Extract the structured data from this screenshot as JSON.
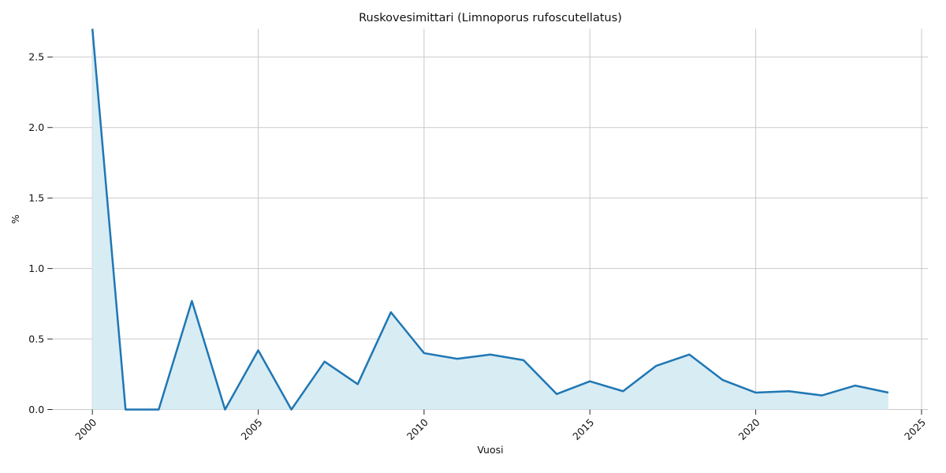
{
  "chart_data": {
    "type": "area",
    "title": "Ruskovesimittari (Limnoporus rufoscutellatus)",
    "xlabel": "Vuosi",
    "ylabel": "%",
    "x": [
      2000,
      2001,
      2002,
      2003,
      2004,
      2005,
      2006,
      2007,
      2008,
      2009,
      2010,
      2011,
      2012,
      2013,
      2014,
      2015,
      2016,
      2017,
      2018,
      2019,
      2020,
      2021,
      2022,
      2023,
      2024
    ],
    "values": [
      2.7,
      0.0,
      0.0,
      0.77,
      0.0,
      0.42,
      0.0,
      0.34,
      0.18,
      0.69,
      0.4,
      0.36,
      0.39,
      0.35,
      0.11,
      0.2,
      0.13,
      0.31,
      0.39,
      0.21,
      0.12,
      0.13,
      0.1,
      0.17,
      0.12
    ],
    "xticks": [
      2000,
      2005,
      2010,
      2015,
      2020,
      2025
    ],
    "yticks": [
      0.0,
      0.5,
      1.0,
      1.5,
      2.0,
      2.5
    ],
    "xlim": [
      1998.8,
      2025.2
    ],
    "ylim": [
      0,
      2.7
    ],
    "grid": true,
    "legend": "none",
    "line_color": "#1f77b4",
    "fill_color": "#d8ecf4",
    "grid_color": "#c9c9c9",
    "tick_color": "#262626",
    "line_width": 2.5
  }
}
